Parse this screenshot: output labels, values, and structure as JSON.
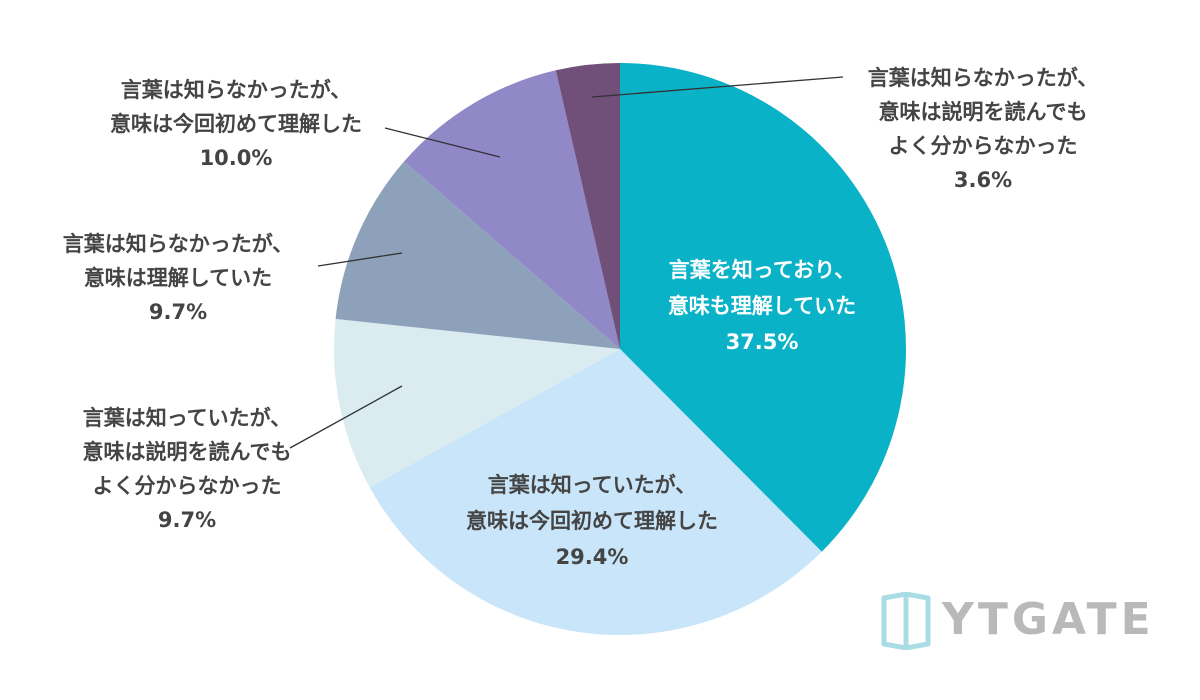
{
  "chart_data": {
    "type": "pie",
    "title": "",
    "start_angle": "12 o'clock, clockwise",
    "slices": [
      {
        "label_lines": [
          "言葉を知っており、",
          "意味も理解していた"
        ],
        "value": 37.5,
        "value_text": "37.5%",
        "color": "#0ab2c8",
        "label_color": "#ffffff",
        "label_placement": "inside"
      },
      {
        "label_lines": [
          "言葉は知っていたが、",
          "意味は今回初めて理解した"
        ],
        "value": 29.4,
        "value_text": "29.4%",
        "color": "#c9e5f9",
        "label_color": "#444444",
        "label_placement": "inside"
      },
      {
        "label_lines": [
          "言葉は知っていたが、",
          "意味は説明を読んでも",
          "よく分からなかった"
        ],
        "value": 9.7,
        "value_text": "9.7%",
        "color": "#dbecf1",
        "label_color": "#444444",
        "label_placement": "outside-left"
      },
      {
        "label_lines": [
          "言葉は知らなかったが、",
          "意味は理解していた"
        ],
        "value": 9.7,
        "value_text": "9.7%",
        "color": "#8ea1ba",
        "label_color": "#444444",
        "label_placement": "outside-left"
      },
      {
        "label_lines": [
          "言葉は知らなかったが、",
          "意味は今回初めて理解した"
        ],
        "value": 10.0,
        "value_text": "10.0%",
        "color": "#9188c7",
        "label_color": "#444444",
        "label_placement": "outside-left"
      },
      {
        "label_lines": [
          "言葉は知らなかったが、",
          "意味は説明を読んでも",
          "よく分からなかった"
        ],
        "value": 3.6,
        "value_text": "3.6%",
        "color": "#704f78",
        "label_color": "#444444",
        "label_placement": "outside-right"
      }
    ]
  },
  "logo": {
    "text": "YTGATE",
    "icon": "door-icon",
    "color": "#a9dde6"
  }
}
